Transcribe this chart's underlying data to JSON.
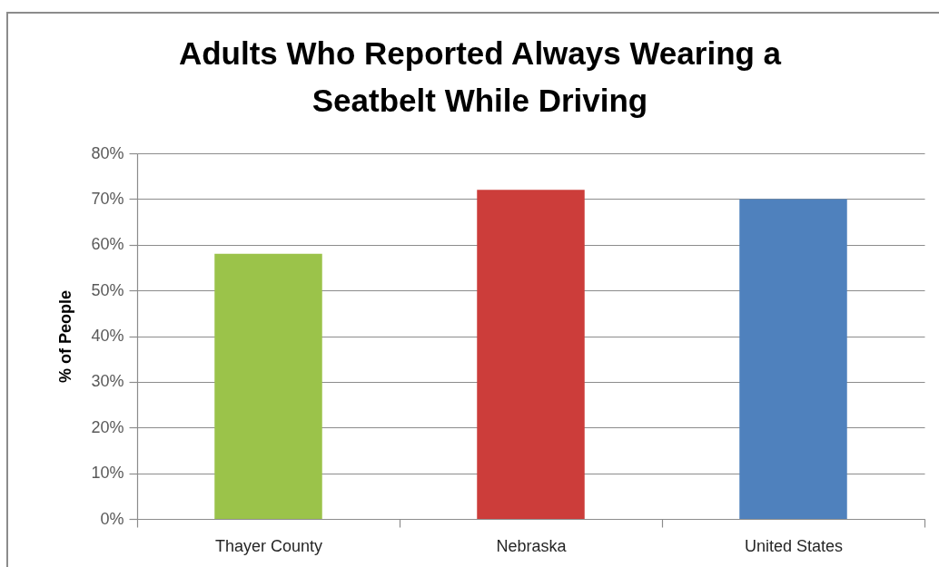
{
  "chart_data": {
    "type": "bar",
    "title": "Adults Who Reported Always Wearing a\nSeatbelt While Driving",
    "ylabel": "% of People",
    "categories": [
      "Thayer County",
      "Nebraska",
      "United States"
    ],
    "values": [
      58,
      72,
      70
    ],
    "colors": [
      "#9bc34a",
      "#cc3d3a",
      "#4f81bd"
    ],
    "ylim": [
      0,
      80
    ],
    "yticks": [
      {
        "value": 0,
        "label": "0%"
      },
      {
        "value": 10,
        "label": "10%"
      },
      {
        "value": 20,
        "label": "20%"
      },
      {
        "value": 30,
        "label": "30%"
      },
      {
        "value": 40,
        "label": "40%"
      },
      {
        "value": 50,
        "label": "50%"
      },
      {
        "value": 60,
        "label": "60%"
      },
      {
        "value": 70,
        "label": "70%"
      },
      {
        "value": 80,
        "label": "80%"
      }
    ],
    "grid": "y"
  }
}
